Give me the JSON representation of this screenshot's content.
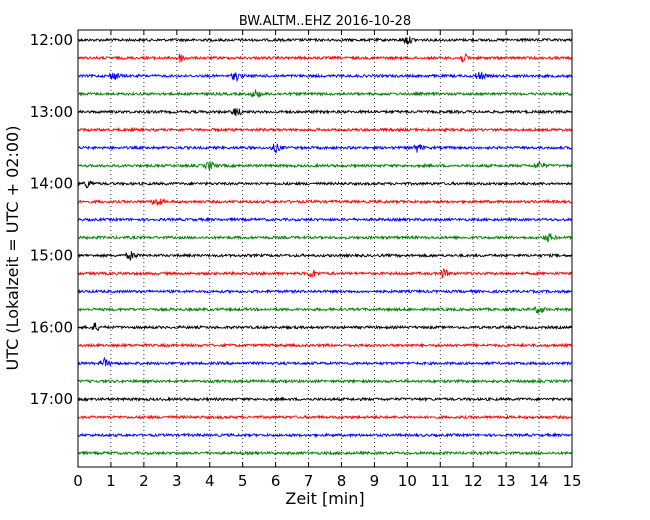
{
  "chart_data": {
    "type": "line",
    "title": "BW.ALTM..EHZ 2016-10-28",
    "xlabel": "Zeit  [min]",
    "ylabel": "UTC (Lokalzeit = UTC + 02:00)",
    "xlim": [
      0,
      15
    ],
    "x_ticks": [
      0,
      1,
      2,
      3,
      4,
      5,
      6,
      7,
      8,
      9,
      10,
      11,
      12,
      13,
      14,
      15
    ],
    "y_tick_labels": [
      "12:00",
      "13:00",
      "14:00",
      "15:00",
      "16:00",
      "17:00"
    ],
    "grid": "vertical dotted",
    "series_colors": [
      "#000000",
      "#ff0000",
      "#0000ff",
      "#008000"
    ],
    "traces": [
      {
        "start": "12:00",
        "color": "#000000",
        "events": [
          10.0
        ]
      },
      {
        "start": "12:15",
        "color": "#ff0000",
        "events": [
          3.1,
          11.7
        ]
      },
      {
        "start": "12:30",
        "color": "#0000ff",
        "events": [
          1.1,
          4.8,
          12.2
        ]
      },
      {
        "start": "12:45",
        "color": "#008000",
        "events": [
          5.4
        ]
      },
      {
        "start": "13:00",
        "color": "#000000",
        "events": [
          4.8
        ]
      },
      {
        "start": "13:15",
        "color": "#ff0000",
        "events": []
      },
      {
        "start": "13:30",
        "color": "#0000ff",
        "events": [
          6.0,
          10.3
        ]
      },
      {
        "start": "13:45",
        "color": "#008000",
        "events": [
          4.0,
          14.0
        ]
      },
      {
        "start": "14:00",
        "color": "#000000",
        "events": [
          0.3
        ]
      },
      {
        "start": "14:15",
        "color": "#ff0000",
        "events": [
          2.4
        ]
      },
      {
        "start": "14:30",
        "color": "#0000ff",
        "events": []
      },
      {
        "start": "14:45",
        "color": "#008000",
        "events": [
          14.3
        ]
      },
      {
        "start": "15:00",
        "color": "#000000",
        "events": [
          1.6
        ]
      },
      {
        "start": "15:15",
        "color": "#ff0000",
        "events": [
          7.1,
          11.1
        ]
      },
      {
        "start": "15:30",
        "color": "#0000ff",
        "events": []
      },
      {
        "start": "15:45",
        "color": "#008000",
        "events": [
          14.0
        ]
      },
      {
        "start": "16:00",
        "color": "#000000",
        "events": [
          0.5
        ]
      },
      {
        "start": "16:15",
        "color": "#ff0000",
        "events": []
      },
      {
        "start": "16:30",
        "color": "#0000ff",
        "events": [
          0.8
        ]
      },
      {
        "start": "16:45",
        "color": "#008000",
        "events": []
      },
      {
        "start": "17:00",
        "color": "#000000",
        "events": []
      },
      {
        "start": "17:15",
        "color": "#ff0000",
        "events": []
      },
      {
        "start": "17:30",
        "color": "#0000ff",
        "events": []
      },
      {
        "start": "17:45",
        "color": "#008000",
        "events": []
      }
    ]
  }
}
